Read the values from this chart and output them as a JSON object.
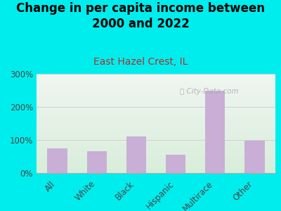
{
  "title": "Change in per capita income between\n2000 and 2022",
  "subtitle": "East Hazel Crest, IL",
  "categories": [
    "All",
    "White",
    "Black",
    "Hispanic",
    "Multirace",
    "Other"
  ],
  "values": [
    75,
    65,
    110,
    55,
    250,
    97
  ],
  "bar_color": "#c9aed6",
  "bg_color": "#00eded",
  "plot_bg_top": "#f0f5f0",
  "plot_bg_bottom": "#d8edda",
  "title_fontsize": 12,
  "subtitle_fontsize": 10,
  "subtitle_color": "#b03030",
  "watermark": "ⓘ City-Data.com",
  "ylim": [
    0,
    300
  ],
  "yticks": [
    0,
    100,
    200,
    300
  ]
}
